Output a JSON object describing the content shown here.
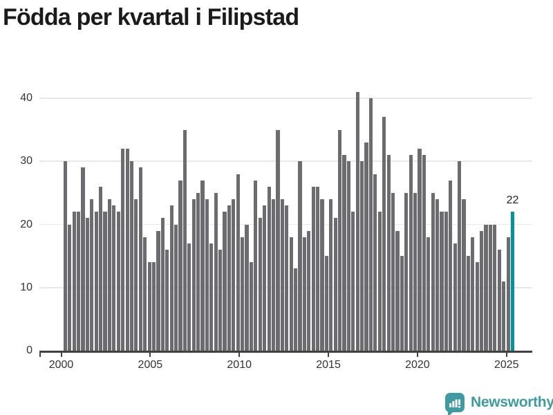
{
  "title": "Födda per kvartal i Filipstad",
  "chart_data": {
    "type": "bar",
    "title": "Födda per kvartal i Filipstad",
    "frequency": "quarterly",
    "x_start": "2000 Q1",
    "x_end": "2025 Q2",
    "values": [
      30,
      20,
      22,
      22,
      29,
      21,
      24,
      22,
      26,
      22,
      24,
      23,
      22,
      32,
      32,
      30,
      24,
      29,
      18,
      14,
      14,
      19,
      21,
      16,
      23,
      20,
      27,
      35,
      17,
      24,
      25,
      27,
      24,
      17,
      25,
      16,
      22,
      23,
      24,
      28,
      18,
      20,
      14,
      27,
      21,
      23,
      26,
      24,
      35,
      24,
      23,
      18,
      13,
      30,
      18,
      19,
      26,
      26,
      24,
      15,
      24,
      21,
      35,
      31,
      30,
      22,
      41,
      30,
      33,
      40,
      28,
      22,
      37,
      31,
      25,
      19,
      15,
      25,
      31,
      25,
      32,
      31,
      18,
      25,
      24,
      22,
      22,
      27,
      17,
      30,
      24,
      15,
      18,
      14,
      19,
      20,
      20,
      20,
      16,
      11,
      18,
      22
    ],
    "highlight_last": true,
    "highlight_value_label": "22",
    "x_ticks": [
      "2000",
      "2005",
      "2010",
      "2015",
      "2020",
      "2025"
    ],
    "y_ticks": [
      0,
      10,
      20,
      30,
      40
    ],
    "ylim": [
      0,
      43
    ],
    "grid": "horizontal",
    "bar_color": "#6b6b70",
    "highlight_color": "#00959e",
    "legend": null
  },
  "footer": {
    "brand": "Newsworthy",
    "logo_icon": "bar-chart-pin-badge"
  },
  "colors": {
    "accent_teal": "#00959e",
    "logo_teal": "#3d9ba1",
    "bar_gray": "#6b6b70",
    "title_text": "#1b1b1b",
    "axis_text": "#333333",
    "gridline": "#e8e8e8",
    "axis_line": "#404040"
  }
}
